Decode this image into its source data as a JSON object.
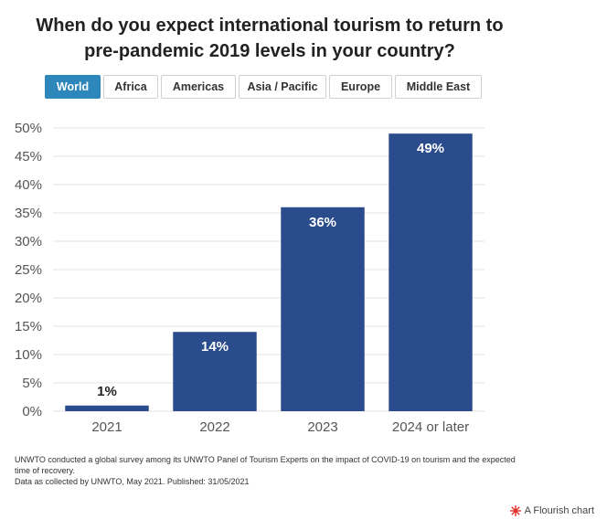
{
  "title_line1": "When do you expect international tourism to return to",
  "title_line2": "pre-pandemic 2019 levels in your country?",
  "tabs": [
    {
      "label": "World",
      "active": true
    },
    {
      "label": "Africa",
      "active": false
    },
    {
      "label": "Americas",
      "active": false
    },
    {
      "label": "Asia / Pacific",
      "active": false
    },
    {
      "label": "Europe",
      "active": false
    },
    {
      "label": "Middle East",
      "active": false
    }
  ],
  "chart_data": {
    "type": "bar",
    "categories": [
      "2021",
      "2022",
      "2023",
      "2024 or later"
    ],
    "values": [
      1,
      14,
      36,
      49
    ],
    "value_labels": [
      "1%",
      "14%",
      "36%",
      "49%"
    ],
    "ylim": [
      0,
      50
    ],
    "yticks": [
      "0%",
      "5%",
      "10%",
      "15%",
      "20%",
      "25%",
      "30%",
      "35%",
      "40%",
      "45%",
      "50%"
    ],
    "grid": true,
    "bar_color": "#2b4c8c",
    "title": "",
    "xlabel": "",
    "ylabel": ""
  },
  "footnote_line1": "UNWTO conducted a global survey among its UNWTO Panel of Tourism Experts on the impact of COVID-19 on tourism and the expected time of recovery.",
  "footnote_line2": "Data as collected by UNWTO, May 2021. Published: 31/05/2021",
  "credit": "A Flourish chart",
  "colors": {
    "accent": "#2e87ba",
    "bar": "#2b4c8c",
    "flourish": "#e0312e"
  }
}
